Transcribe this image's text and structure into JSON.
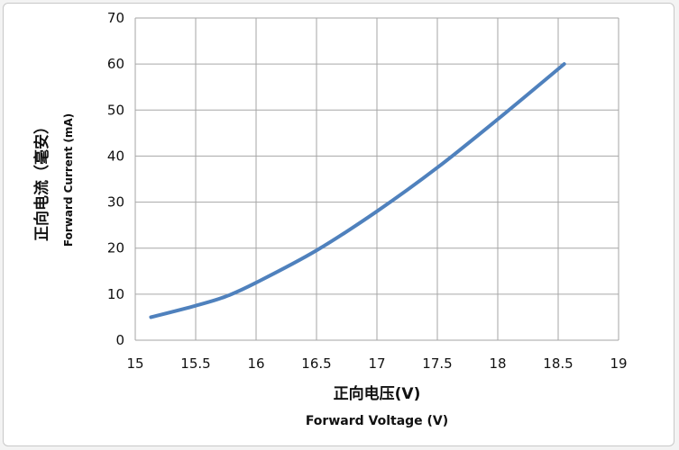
{
  "chart_data": {
    "type": "line",
    "xlabel_cn": "正向电压(V)",
    "xlabel_en": "Forward Voltage (V)",
    "ylabel_cn": "正向电流（毫安）",
    "ylabel_en": "Forward Current (mA)",
    "xlim": [
      15,
      19
    ],
    "ylim": [
      0,
      70
    ],
    "x_ticks": [
      15,
      15.5,
      16,
      16.5,
      17,
      17.5,
      18,
      18.5,
      19
    ],
    "x_tick_labels": [
      "15",
      "15.5",
      "16",
      "16.5",
      "17",
      "17.5",
      "18",
      "18.5",
      "19"
    ],
    "y_ticks": [
      0,
      10,
      20,
      30,
      40,
      50,
      60,
      70
    ],
    "y_tick_labels": [
      "0",
      "10",
      "20",
      "30",
      "40",
      "50",
      "60",
      "70"
    ],
    "grid": true,
    "legend": "none",
    "series": [
      {
        "color": "#4f81bd",
        "x": [
          15.13,
          15.5,
          15.75,
          16.0,
          16.5,
          17.0,
          17.5,
          18.0,
          18.55
        ],
        "y": [
          5,
          7.5,
          9.5,
          12.5,
          19.5,
          28,
          37.5,
          48,
          60
        ]
      }
    ]
  }
}
